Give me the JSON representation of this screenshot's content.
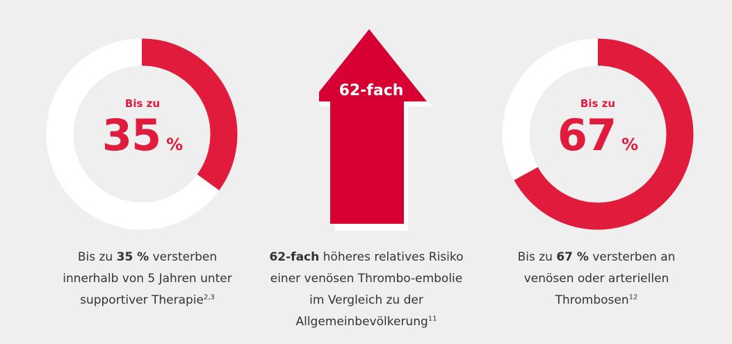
{
  "colors": {
    "accent": "#e01b3c",
    "arrow": "#d60032",
    "track": "#ffffff",
    "background": "#efefef"
  },
  "chart_data": [
    {
      "type": "pie",
      "variant": "donut",
      "values": [
        35,
        65
      ],
      "center": {
        "top": "Bis zu",
        "value": "35",
        "unit": "%"
      },
      "caption": {
        "pre": "Bis zu ",
        "bold": "35 %",
        "rest": " versterben innerhalb von 5 Jahren unter supportiver Therapie",
        "sup": "2,3"
      }
    },
    {
      "type": "arrow",
      "label": "62-fach",
      "caption": {
        "bold": "62-fach",
        "rest": " höheres relatives Risiko einer venösen Thrombo-embolie im Vergleich zu der Allgemeinbevölkerung",
        "sup": "11"
      }
    },
    {
      "type": "pie",
      "variant": "donut",
      "values": [
        67,
        33
      ],
      "center": {
        "top": "Bis zu",
        "value": "67",
        "unit": "%"
      },
      "caption": {
        "pre": "Bis zu ",
        "bold": "67 %",
        "rest": " versterben an venösen oder arteriellen Thrombosen",
        "sup": "12"
      }
    }
  ]
}
